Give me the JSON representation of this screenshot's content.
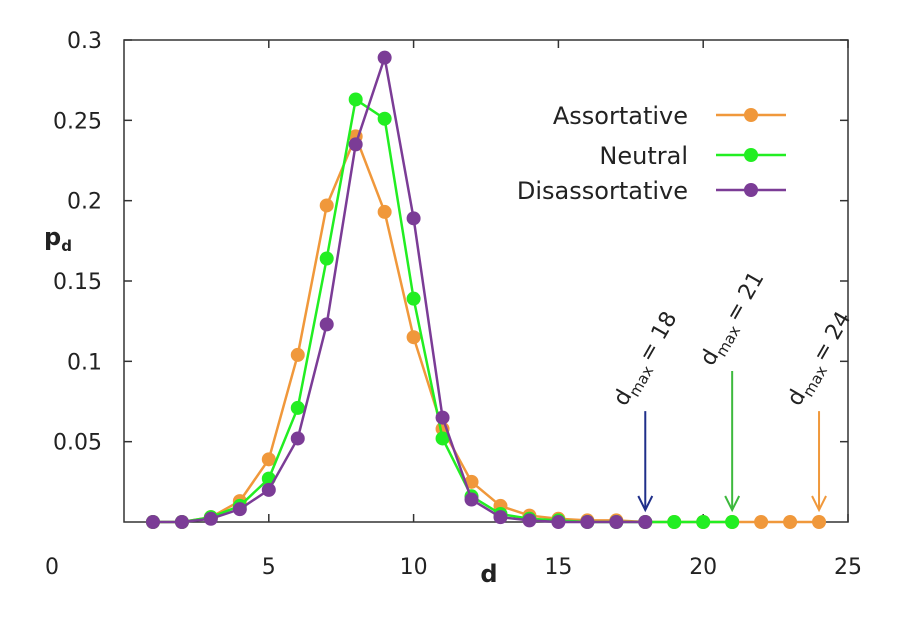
{
  "chart_data": {
    "type": "line",
    "xlabel": "d",
    "ylabel_main": "p",
    "ylabel_sub": "d",
    "xlim": [
      0,
      25
    ],
    "ylim": [
      0,
      0.3
    ],
    "x_ticks": [
      5,
      10,
      15,
      20,
      25
    ],
    "y_ticks": [
      0.05,
      0.1,
      0.15,
      0.2,
      0.25,
      0.3
    ],
    "x_tick_labels": [
      "5",
      "10",
      "15",
      "20",
      "25"
    ],
    "y_tick_labels": [
      "0.05",
      "0.1",
      "0.15",
      "0.2",
      "0.25",
      "0.3"
    ],
    "origin_label": "0",
    "grid": false,
    "legend_position": "top-right",
    "series": [
      {
        "name": "Assortative",
        "color": "#f0983b",
        "x": [
          1,
          2,
          3,
          4,
          5,
          6,
          7,
          8,
          9,
          10,
          11,
          12,
          13,
          14,
          15,
          16,
          17,
          18,
          19,
          20,
          21,
          22,
          23,
          24
        ],
        "y": [
          0,
          0,
          0.003,
          0.013,
          0.039,
          0.104,
          0.197,
          0.24,
          0.193,
          0.115,
          0.058,
          0.025,
          0.01,
          0.004,
          0.002,
          0.001,
          0.001,
          0,
          0,
          0,
          0,
          0,
          0,
          0
        ]
      },
      {
        "name": "Neutral",
        "color": "#22ee22",
        "x": [
          1,
          2,
          3,
          4,
          5,
          6,
          7,
          8,
          9,
          10,
          11,
          12,
          13,
          14,
          15,
          16,
          17,
          18,
          19,
          20,
          21
        ],
        "y": [
          0,
          0,
          0.003,
          0.01,
          0.027,
          0.071,
          0.164,
          0.263,
          0.251,
          0.139,
          0.052,
          0.016,
          0.005,
          0.002,
          0.001,
          0,
          0,
          0,
          0,
          0,
          0
        ]
      },
      {
        "name": "Disassortative",
        "color": "#7b3c96",
        "x": [
          1,
          2,
          3,
          4,
          5,
          6,
          7,
          8,
          9,
          10,
          11,
          12,
          13,
          14,
          15,
          16,
          17,
          18
        ],
        "y": [
          0,
          0,
          0.002,
          0.008,
          0.02,
          0.052,
          0.123,
          0.235,
          0.289,
          0.189,
          0.065,
          0.014,
          0.003,
          0.001,
          0,
          0,
          0,
          0
        ]
      }
    ],
    "annotations": [
      {
        "label_main": "d",
        "label_sub": "max",
        "label_eq": "= 18",
        "x": 18,
        "arrow_top_y": 0.069,
        "color": "#1f2f8a"
      },
      {
        "label_main": "d",
        "label_sub": "max",
        "label_eq": "= 21",
        "x": 21,
        "arrow_top_y": 0.094,
        "color": "#3db93d"
      },
      {
        "label_main": "d",
        "label_sub": "max",
        "label_eq": "= 24",
        "x": 24,
        "arrow_top_y": 0.069,
        "color": "#f0983b"
      }
    ]
  }
}
